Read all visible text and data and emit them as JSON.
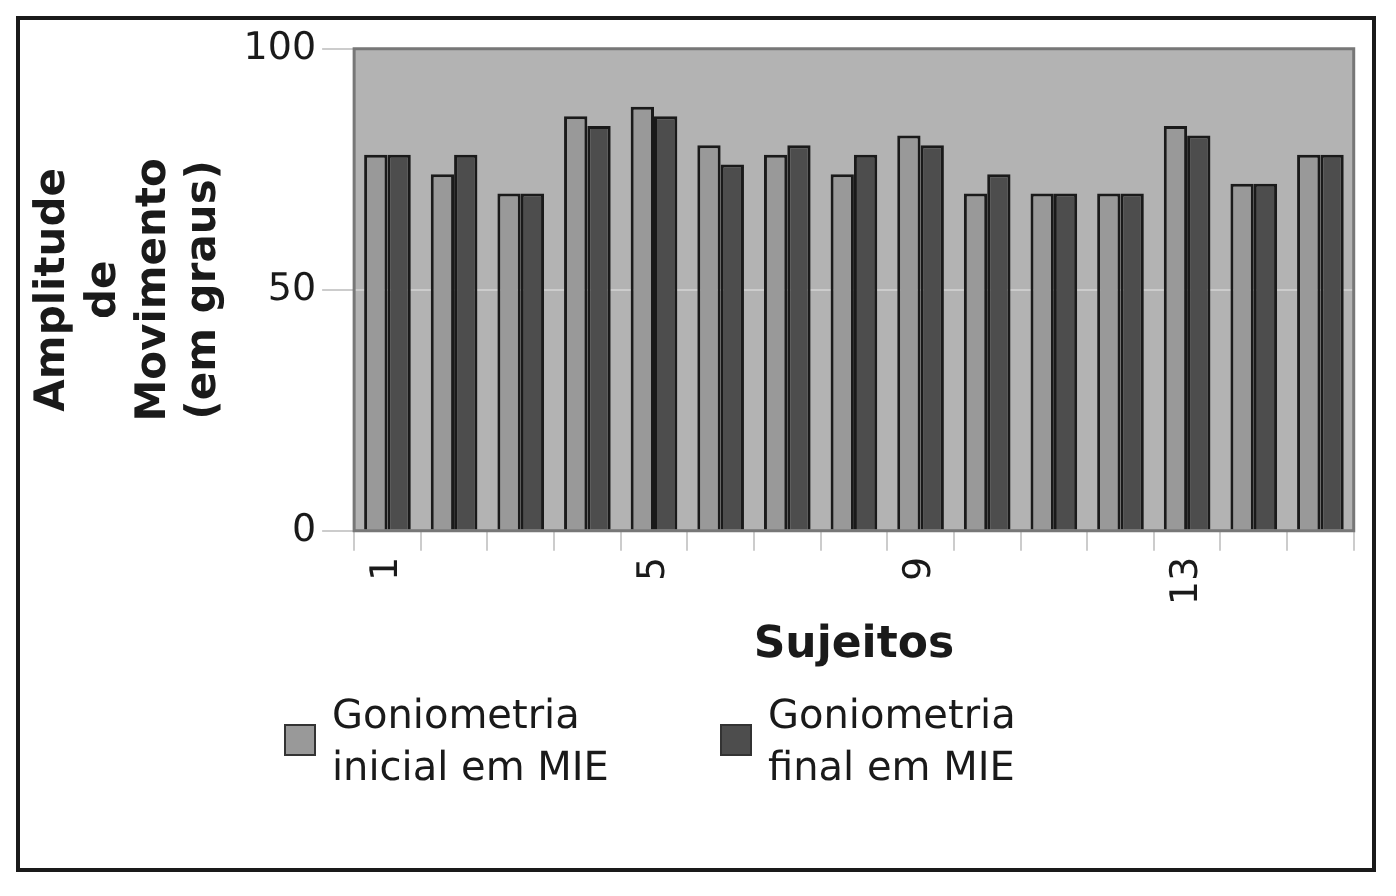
{
  "chart_data": {
    "type": "bar",
    "xlabel": "Sujeitos",
    "ylabel": "Amplitude de Movimento (em graus)",
    "categories": [
      "1",
      null,
      null,
      null,
      "5",
      null,
      null,
      null,
      "9",
      null,
      null,
      null,
      "13",
      null,
      null
    ],
    "series": [
      {
        "name": "Goniometria inicial em MIE",
        "color": "#999999",
        "values": [
          78,
          74,
          70,
          86,
          88,
          80,
          78,
          74,
          82,
          70,
          70,
          70,
          84,
          72,
          78
        ]
      },
      {
        "name": "Goniometria final em MIE",
        "color": "#4d4d4d",
        "values": [
          78,
          78,
          70,
          84,
          86,
          76,
          80,
          78,
          80,
          74,
          70,
          70,
          82,
          72,
          78
        ]
      }
    ],
    "ylim": [
      0,
      100
    ],
    "yticks": [
      0,
      50,
      100
    ],
    "grid": "y",
    "legend": "bottom"
  }
}
